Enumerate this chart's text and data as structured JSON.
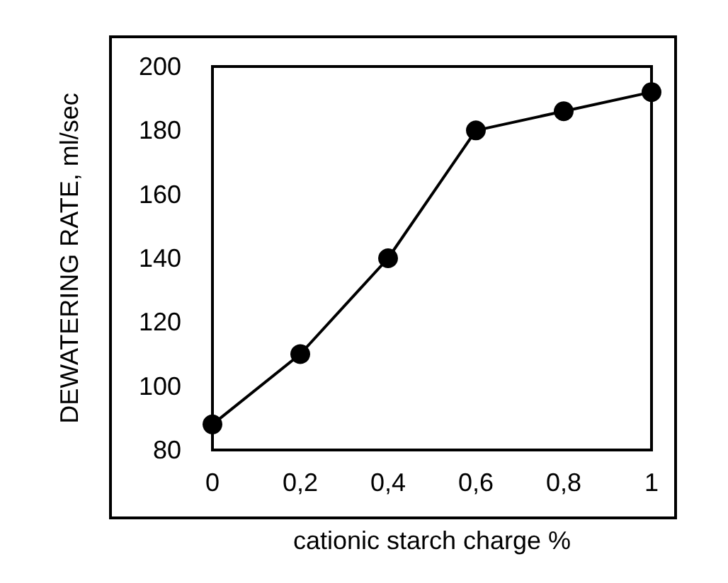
{
  "chart_data": {
    "type": "line",
    "xlabel": "cationic starch charge %",
    "ylabel": "DEWATERING RATE, ml/sec",
    "x": [
      0,
      0.2,
      0.4,
      0.6,
      0.8,
      1
    ],
    "series": [
      {
        "color": "#000000",
        "values": [
          88,
          110,
          140,
          180,
          186,
          192
        ]
      }
    ],
    "xlim": [
      0,
      1
    ],
    "xticks": [
      0,
      {
        "value": 0.2,
        "label": "0,2"
      },
      {
        "value": 0.4,
        "label": "0,4"
      },
      {
        "value": 0.6,
        "label": "0,6"
      },
      {
        "value": 0.8,
        "label": "0,8"
      },
      1
    ],
    "ylim": [
      80,
      200
    ],
    "yticks": [
      80,
      100,
      120,
      140,
      160,
      180,
      200
    ],
    "grid": false,
    "marker": "circle",
    "line_style": "solid"
  }
}
